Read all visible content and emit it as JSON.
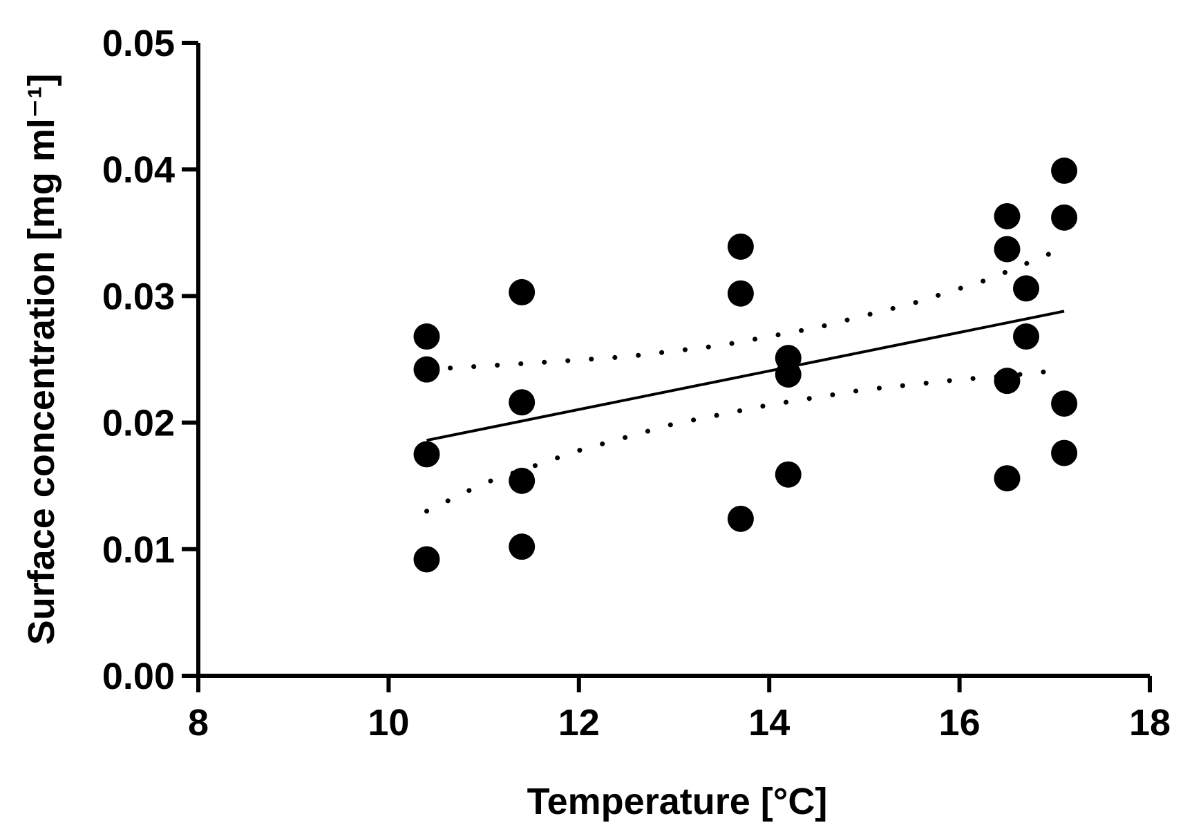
{
  "chart_data": {
    "type": "scatter",
    "title": "",
    "xlabel": "Temperature [°C]",
    "ylabel": "Surface concentration [mg ml⁻¹]",
    "xlim": [
      8,
      18
    ],
    "ylim": [
      0,
      0.05
    ],
    "x_ticks": [
      "8",
      "10",
      "12",
      "14",
      "16",
      "18"
    ],
    "y_ticks": [
      "0.00",
      "0.01",
      "0.02",
      "0.03",
      "0.04",
      "0.05"
    ],
    "grid": false,
    "legend": "none",
    "colors": {
      "points": "#000000",
      "axes": "#000000",
      "fit": "#000000"
    },
    "points": [
      {
        "x": 10.4,
        "y": 0.0268
      },
      {
        "x": 10.4,
        "y": 0.0242
      },
      {
        "x": 10.4,
        "y": 0.0175
      },
      {
        "x": 10.4,
        "y": 0.0092
      },
      {
        "x": 11.4,
        "y": 0.0303
      },
      {
        "x": 11.4,
        "y": 0.0216
      },
      {
        "x": 11.4,
        "y": 0.0154
      },
      {
        "x": 11.4,
        "y": 0.0102
      },
      {
        "x": 13.7,
        "y": 0.0339
      },
      {
        "x": 13.7,
        "y": 0.0302
      },
      {
        "x": 13.7,
        "y": 0.0124
      },
      {
        "x": 14.2,
        "y": 0.0251
      },
      {
        "x": 14.2,
        "y": 0.0238
      },
      {
        "x": 14.2,
        "y": 0.0159
      },
      {
        "x": 16.5,
        "y": 0.0363
      },
      {
        "x": 16.5,
        "y": 0.0337
      },
      {
        "x": 16.5,
        "y": 0.0233
      },
      {
        "x": 16.5,
        "y": 0.0156
      },
      {
        "x": 16.7,
        "y": 0.0306
      },
      {
        "x": 16.7,
        "y": 0.0268
      },
      {
        "x": 17.1,
        "y": 0.0399
      },
      {
        "x": 17.1,
        "y": 0.0362
      },
      {
        "x": 17.1,
        "y": 0.0215
      },
      {
        "x": 17.1,
        "y": 0.0176
      }
    ],
    "regression_line": {
      "x": [
        10.4,
        17.1
      ],
      "y": [
        0.0186,
        0.0288
      ]
    },
    "confidence_upper": {
      "x": [
        10.4,
        11.5,
        12.5,
        13.5,
        14.5,
        15.5,
        16.3,
        17.0
      ],
      "y": [
        0.0242,
        0.0247,
        0.0252,
        0.0261,
        0.0275,
        0.0294,
        0.0313,
        0.0335
      ]
    },
    "confidence_lower": {
      "x": [
        10.4,
        11.0,
        12.0,
        13.0,
        14.0,
        15.0,
        16.0,
        16.5,
        17.0
      ],
      "y": [
        0.013,
        0.0152,
        0.0178,
        0.0199,
        0.0214,
        0.0226,
        0.0234,
        0.0237,
        0.0241
      ]
    }
  }
}
